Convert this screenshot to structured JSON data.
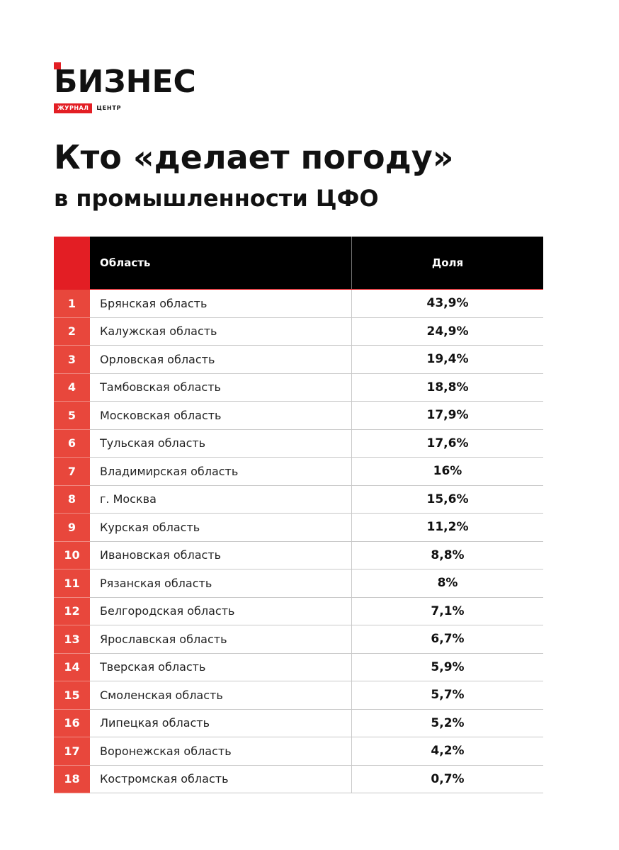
{
  "brand": {
    "name": "БИЗНЕС",
    "tag": "ЖУРНАЛ",
    "tag2": "ЦЕНТР",
    "accent_color": "#e31e24"
  },
  "heading": {
    "title": "Кто «делает погоду»",
    "subtitle": "в промышленности ЦФО"
  },
  "table": {
    "columns": {
      "region": "Область",
      "share": "Доля"
    },
    "rows": [
      {
        "rank": "1",
        "region": "Брянская область",
        "share": "43,9%"
      },
      {
        "rank": "2",
        "region": "Калужская область",
        "share": "24,9%"
      },
      {
        "rank": "3",
        "region": "Орловская область",
        "share": "19,4%"
      },
      {
        "rank": "4",
        "region": "Тамбовская область",
        "share": "18,8%"
      },
      {
        "rank": "5",
        "region": "Московская область",
        "share": "17,9%"
      },
      {
        "rank": "6",
        "region": "Тульская область",
        "share": "17,6%"
      },
      {
        "rank": "7",
        "region": "Владимирская область",
        "share": "16%"
      },
      {
        "rank": "8",
        "region": "г. Москва",
        "share": "15,6%"
      },
      {
        "rank": "9",
        "region": "Курская область",
        "share": "11,2%"
      },
      {
        "rank": "10",
        "region": "Ивановская область",
        "share": "8,8%"
      },
      {
        "rank": "11",
        "region": "Рязанская область",
        "share": "8%"
      },
      {
        "rank": "12",
        "region": "Белгородская область",
        "share": "7,1%"
      },
      {
        "rank": "13",
        "region": "Ярославская область",
        "share": "6,7%"
      },
      {
        "rank": "14",
        "region": "Тверская область",
        "share": "5,9%"
      },
      {
        "rank": "15",
        "region": "Смоленская область",
        "share": "5,7%"
      },
      {
        "rank": "16",
        "region": "Липецкая область",
        "share": "5,2%"
      },
      {
        "rank": "17",
        "region": "Воронежская область",
        "share": "4,2%"
      },
      {
        "rank": "18",
        "region": "Костромская область",
        "share": "0,7%"
      }
    ]
  }
}
